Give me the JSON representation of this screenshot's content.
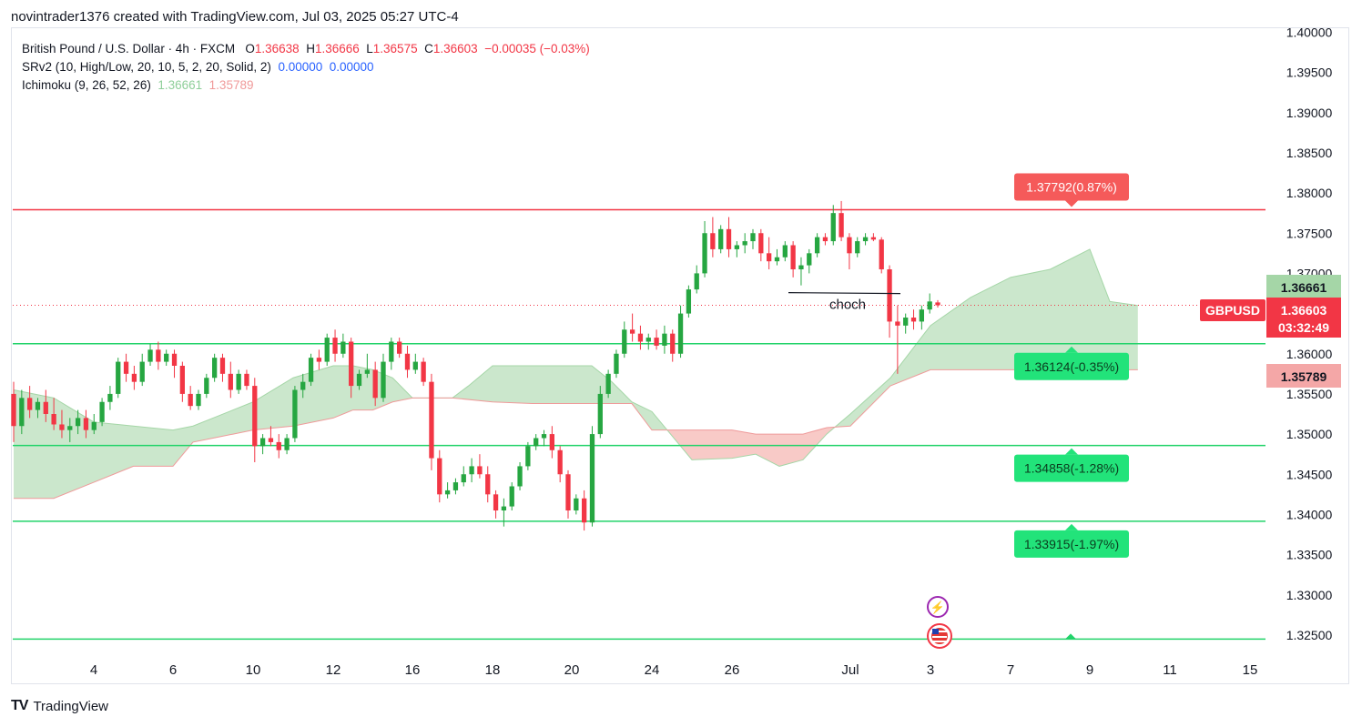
{
  "header": {
    "title": "novintrader1376 created with TradingView.com, Jul 03, 2025 05:27 UTC-4"
  },
  "legend": {
    "symbol_line": "British Pound / U.S. Dollar · 4h · FXCM",
    "o_label": "O",
    "o_value": "1.36638",
    "h_label": "H",
    "h_value": "1.36666",
    "l_label": "L",
    "l_value": "1.36575",
    "c_label": "C",
    "c_value": "1.36603",
    "change": "−0.00035 (−0.03%)",
    "srv2_label": "SRv2 (10, High/Low, 20, 10, 5, 2, 20, Solid, 2)",
    "srv2_v1": "0.00000",
    "srv2_v2": "0.00000",
    "ichimoku_label": "Ichimoku (9, 26, 52, 26)",
    "ichimoku_v1": "1.36661",
    "ichimoku_v2": "1.35789"
  },
  "footer": {
    "brand": "TradingView",
    "logo": "TV"
  },
  "colors": {
    "up": "#26a641",
    "down": "#f23645",
    "sr_green": "#22d36a",
    "sr_red": "#f23645",
    "cloud_green": "#c8e6c9",
    "cloud_red": "#f8c7c4",
    "axis_text": "#131722"
  },
  "chart_data": {
    "type": "candlestick",
    "symbol": "GBPUSD",
    "timeframe": "4h",
    "ylim": [
      1.3225,
      1.4005
    ],
    "y_ticks": [
      "1.40000",
      "1.39500",
      "1.39000",
      "1.38500",
      "1.38000",
      "1.37500",
      "1.37000",
      "1.36500",
      "1.36000",
      "1.35500",
      "1.35000",
      "1.34500",
      "1.34000",
      "1.33500",
      "1.33000",
      "1.32500"
    ],
    "x_ticks": [
      {
        "label": "4",
        "day": 4
      },
      {
        "label": "6",
        "day": 6
      },
      {
        "label": "10",
        "day": 10
      },
      {
        "label": "12",
        "day": 12
      },
      {
        "label": "16",
        "day": 16
      },
      {
        "label": "18",
        "day": 18
      },
      {
        "label": "20",
        "day": 20
      },
      {
        "label": "24",
        "day": 24
      },
      {
        "label": "26",
        "day": 26
      },
      {
        "label": "Jul",
        "day": 31
      },
      {
        "label": "3",
        "day": 33
      },
      {
        "label": "7",
        "day": 35
      },
      {
        "label": "9",
        "day": 37
      },
      {
        "label": "11",
        "day": 39
      },
      {
        "label": "15",
        "day": 41
      }
    ],
    "x_day_range": [
      2,
      42
    ],
    "horizontal_levels": [
      {
        "price": 1.37792,
        "label": "1.37792(0.87%)",
        "color": "red"
      },
      {
        "price": 1.36124,
        "label": "1.36124(-0.35%)",
        "color": "green"
      },
      {
        "price": 1.34858,
        "label": "1.34858(-1.28%)",
        "color": "green"
      },
      {
        "price": 1.33915,
        "label": "1.33915(-1.97%)",
        "color": "green"
      },
      {
        "price": 1.3245,
        "label": "",
        "color": "green"
      }
    ],
    "price_badges": [
      {
        "text": "1.36661",
        "price": 1.36661,
        "style": "cloud_green"
      },
      {
        "symbol": "GBPUSD",
        "text": "1.36603",
        "sub": "03:32:49",
        "price": 1.36603,
        "style": "last"
      },
      {
        "text": "1.35789",
        "price": 1.35789,
        "style": "cloud_red"
      }
    ],
    "annotation": {
      "text": "choch",
      "day": 31.0,
      "price": 1.3685
    },
    "choch_line": {
      "day_start": 30.0,
      "day_end": 32.5,
      "price": 1.3676
    },
    "last_price": 1.36603,
    "candles": [
      [
        1.355,
        1.3565,
        1.349,
        1.351
      ],
      [
        1.351,
        1.3555,
        1.35,
        1.3545
      ],
      [
        1.3545,
        1.356,
        1.352,
        1.353
      ],
      [
        1.353,
        1.3545,
        1.352,
        1.354
      ],
      [
        1.354,
        1.3555,
        1.3515,
        1.3525
      ],
      [
        1.3525,
        1.3545,
        1.3505,
        1.3512
      ],
      [
        1.3512,
        1.353,
        1.3495,
        1.3505
      ],
      [
        1.3505,
        1.352,
        1.349,
        1.351
      ],
      [
        1.351,
        1.353,
        1.35,
        1.352
      ],
      [
        1.352,
        1.353,
        1.3495,
        1.3505
      ],
      [
        1.3505,
        1.3525,
        1.35,
        1.3515
      ],
      [
        1.3515,
        1.3545,
        1.351,
        1.354
      ],
      [
        1.354,
        1.356,
        1.353,
        1.355
      ],
      [
        1.355,
        1.3595,
        1.3545,
        1.359
      ],
      [
        1.359,
        1.36,
        1.3565,
        1.3575
      ],
      [
        1.3575,
        1.3585,
        1.3555,
        1.3565
      ],
      [
        1.3565,
        1.36,
        1.356,
        1.359
      ],
      [
        1.359,
        1.3612,
        1.3585,
        1.3605
      ],
      [
        1.3605,
        1.3615,
        1.358,
        1.359
      ],
      [
        1.359,
        1.3605,
        1.3585,
        1.36
      ],
      [
        1.36,
        1.3605,
        1.357,
        1.3585
      ],
      [
        1.3585,
        1.359,
        1.354,
        1.355
      ],
      [
        1.355,
        1.356,
        1.353,
        1.3535
      ],
      [
        1.3535,
        1.3555,
        1.353,
        1.355
      ],
      [
        1.355,
        1.3575,
        1.3545,
        1.357
      ],
      [
        1.357,
        1.36,
        1.3565,
        1.3595
      ],
      [
        1.3595,
        1.36,
        1.3565,
        1.3575
      ],
      [
        1.3575,
        1.359,
        1.3545,
        1.3555
      ],
      [
        1.3555,
        1.358,
        1.355,
        1.3575
      ],
      [
        1.3575,
        1.358,
        1.3555,
        1.356
      ],
      [
        1.356,
        1.357,
        1.3465,
        1.3485
      ],
      [
        1.3485,
        1.35,
        1.3475,
        1.3495
      ],
      [
        1.3495,
        1.351,
        1.3485,
        1.349
      ],
      [
        1.349,
        1.35,
        1.347,
        1.348
      ],
      [
        1.348,
        1.35,
        1.3475,
        1.3495
      ],
      [
        1.3495,
        1.356,
        1.349,
        1.3555
      ],
      [
        1.3555,
        1.3575,
        1.3545,
        1.3565
      ],
      [
        1.3565,
        1.36,
        1.356,
        1.3595
      ],
      [
        1.3595,
        1.3605,
        1.358,
        1.359
      ],
      [
        1.359,
        1.3625,
        1.3585,
        1.362
      ],
      [
        1.362,
        1.363,
        1.359,
        1.36
      ],
      [
        1.36,
        1.3625,
        1.3595,
        1.3615
      ],
      [
        1.3615,
        1.362,
        1.3545,
        1.356
      ],
      [
        1.356,
        1.358,
        1.3555,
        1.3575
      ],
      [
        1.3575,
        1.36,
        1.357,
        1.358
      ],
      [
        1.358,
        1.359,
        1.3535,
        1.3545
      ],
      [
        1.3545,
        1.36,
        1.354,
        1.359
      ],
      [
        1.359,
        1.362,
        1.358,
        1.3615
      ],
      [
        1.3615,
        1.362,
        1.3595,
        1.36
      ],
      [
        1.36,
        1.361,
        1.357,
        1.358
      ],
      [
        1.358,
        1.36,
        1.3575,
        1.359
      ],
      [
        1.359,
        1.3595,
        1.356,
        1.3565
      ],
      [
        1.3565,
        1.3575,
        1.3455,
        1.347
      ],
      [
        1.347,
        1.348,
        1.3415,
        1.3425
      ],
      [
        1.3425,
        1.344,
        1.342,
        1.343
      ],
      [
        1.343,
        1.3445,
        1.3425,
        1.344
      ],
      [
        1.344,
        1.346,
        1.3435,
        1.345
      ],
      [
        1.345,
        1.347,
        1.344,
        1.346
      ],
      [
        1.346,
        1.3475,
        1.3445,
        1.345
      ],
      [
        1.345,
        1.346,
        1.3415,
        1.3425
      ],
      [
        1.3425,
        1.343,
        1.3395,
        1.3405
      ],
      [
        1.3405,
        1.342,
        1.3385,
        1.341
      ],
      [
        1.341,
        1.344,
        1.3405,
        1.3435
      ],
      [
        1.3435,
        1.3465,
        1.343,
        1.346
      ],
      [
        1.346,
        1.349,
        1.3455,
        1.3485
      ],
      [
        1.3485,
        1.35,
        1.348,
        1.3495
      ],
      [
        1.3495,
        1.3505,
        1.3485,
        1.35
      ],
      [
        1.35,
        1.351,
        1.347,
        1.348
      ],
      [
        1.348,
        1.3485,
        1.344,
        1.345
      ],
      [
        1.345,
        1.3455,
        1.3395,
        1.3405
      ],
      [
        1.3405,
        1.3425,
        1.34,
        1.342
      ],
      [
        1.342,
        1.343,
        1.338,
        1.339
      ],
      [
        1.339,
        1.351,
        1.3385,
        1.35
      ],
      [
        1.35,
        1.356,
        1.3495,
        1.355
      ],
      [
        1.355,
        1.358,
        1.3545,
        1.3575
      ],
      [
        1.3575,
        1.3605,
        1.357,
        1.36
      ],
      [
        1.36,
        1.364,
        1.3595,
        1.363
      ],
      [
        1.363,
        1.365,
        1.3615,
        1.3625
      ],
      [
        1.3625,
        1.3635,
        1.3605,
        1.3615
      ],
      [
        1.3615,
        1.3625,
        1.3605,
        1.362
      ],
      [
        1.362,
        1.363,
        1.3605,
        1.361
      ],
      [
        1.361,
        1.3635,
        1.36,
        1.3625
      ],
      [
        1.3625,
        1.363,
        1.359,
        1.36
      ],
      [
        1.36,
        1.366,
        1.3595,
        1.365
      ],
      [
        1.365,
        1.3685,
        1.3645,
        1.368
      ],
      [
        1.368,
        1.371,
        1.3675,
        1.37
      ],
      [
        1.37,
        1.3765,
        1.3695,
        1.375
      ],
      [
        1.375,
        1.377,
        1.372,
        1.373
      ],
      [
        1.373,
        1.376,
        1.3725,
        1.3755
      ],
      [
        1.3755,
        1.377,
        1.372,
        1.373
      ],
      [
        1.373,
        1.374,
        1.372,
        1.3735
      ],
      [
        1.3735,
        1.375,
        1.3725,
        1.374
      ],
      [
        1.374,
        1.3755,
        1.373,
        1.375
      ],
      [
        1.375,
        1.3755,
        1.3715,
        1.3725
      ],
      [
        1.3725,
        1.3745,
        1.3705,
        1.3715
      ],
      [
        1.3715,
        1.373,
        1.371,
        1.372
      ],
      [
        1.372,
        1.374,
        1.3715,
        1.3735
      ],
      [
        1.3735,
        1.374,
        1.3695,
        1.3705
      ],
      [
        1.3705,
        1.372,
        1.3685,
        1.371
      ],
      [
        1.371,
        1.373,
        1.37,
        1.3725
      ],
      [
        1.3725,
        1.375,
        1.372,
        1.3745
      ],
      [
        1.3745,
        1.375,
        1.3735,
        1.374
      ],
      [
        1.374,
        1.3785,
        1.3735,
        1.3775
      ],
      [
        1.3775,
        1.379,
        1.374,
        1.3745
      ],
      [
        1.3745,
        1.375,
        1.3705,
        1.3725
      ],
      [
        1.3725,
        1.3745,
        1.372,
        1.374
      ],
      [
        1.374,
        1.375,
        1.3735,
        1.3745
      ],
      [
        1.3745,
        1.375,
        1.374,
        1.3742
      ],
      [
        1.3742,
        1.3745,
        1.37,
        1.3705
      ],
      [
        1.3705,
        1.371,
        1.362,
        1.364
      ],
      [
        1.364,
        1.366,
        1.3575,
        1.3635
      ],
      [
        1.3635,
        1.365,
        1.3625,
        1.3645
      ],
      [
        1.3645,
        1.3655,
        1.363,
        1.364
      ],
      [
        1.364,
        1.366,
        1.363,
        1.3655
      ],
      [
        1.3655,
        1.3675,
        1.365,
        1.3665
      ],
      [
        1.36638,
        1.36666,
        1.36575,
        1.36603
      ]
    ],
    "ichimoku_cloud": {
      "senkou_a": [
        [
          2,
          1.3555
        ],
        [
          3,
          1.3545
        ],
        [
          4,
          1.3515
        ],
        [
          5,
          1.351
        ],
        [
          6,
          1.3505
        ],
        [
          7,
          1.351
        ],
        [
          8,
          1.352
        ],
        [
          9,
          1.353
        ],
        [
          10,
          1.354
        ],
        [
          11,
          1.357
        ],
        [
          12,
          1.3585
        ],
        [
          13,
          1.3585
        ],
        [
          14,
          1.358
        ],
        [
          15,
          1.357
        ],
        [
          16,
          1.3545
        ],
        [
          17,
          1.3545
        ],
        [
          17.4,
          1.356
        ],
        [
          18,
          1.3585
        ],
        [
          19,
          1.3585
        ],
        [
          20,
          1.3585
        ],
        [
          21,
          1.3585
        ],
        [
          22,
          1.3565
        ],
        [
          23,
          1.354
        ],
        [
          24,
          1.3528
        ],
        [
          25,
          1.3468
        ],
        [
          26,
          1.347
        ],
        [
          27,
          1.3475
        ],
        [
          28,
          1.346
        ],
        [
          29,
          1.3468
        ],
        [
          30,
          1.35
        ],
        [
          31,
          1.3525
        ],
        [
          32,
          1.357
        ],
        [
          33,
          1.3635
        ],
        [
          34,
          1.367
        ],
        [
          35,
          1.3695
        ],
        [
          36,
          1.3705
        ],
        [
          37,
          1.373
        ],
        [
          37.5,
          1.3665
        ],
        [
          38.2,
          1.366
        ]
      ],
      "senkou_b": [
        [
          2,
          1.342
        ],
        [
          3,
          1.342
        ],
        [
          4,
          1.344
        ],
        [
          5,
          1.346
        ],
        [
          6,
          1.346
        ],
        [
          7,
          1.349
        ],
        [
          8,
          1.3495
        ],
        [
          9,
          1.35
        ],
        [
          10,
          1.3505
        ],
        [
          11,
          1.351
        ],
        [
          12,
          1.352
        ],
        [
          13,
          1.353
        ],
        [
          14,
          1.353
        ],
        [
          15,
          1.354
        ],
        [
          16,
          1.3545
        ],
        [
          17,
          1.3545
        ],
        [
          18,
          1.354
        ],
        [
          19,
          1.3538
        ],
        [
          20,
          1.3538
        ],
        [
          21,
          1.3538
        ],
        [
          22,
          1.3538
        ],
        [
          23,
          1.3538
        ],
        [
          24,
          1.3505
        ],
        [
          25,
          1.3505
        ],
        [
          26,
          1.3505
        ],
        [
          27,
          1.35
        ],
        [
          28,
          1.35
        ],
        [
          29,
          1.35
        ],
        [
          30,
          1.3508
        ],
        [
          31,
          1.351
        ],
        [
          32,
          1.356
        ],
        [
          33,
          1.358
        ],
        [
          34,
          1.358
        ],
        [
          35,
          1.358
        ],
        [
          36,
          1.358
        ],
        [
          37,
          1.358
        ],
        [
          38.2,
          1.358
        ]
      ]
    }
  }
}
